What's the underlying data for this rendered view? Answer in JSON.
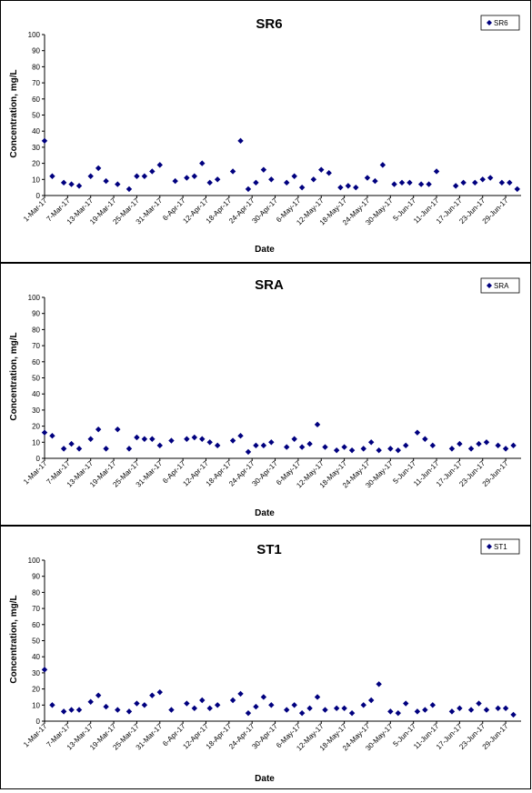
{
  "chart_data": [
    {
      "type": "scatter",
      "title": "SR6",
      "xlabel": "Date",
      "ylabel": "Concentration, mg/L",
      "ylim": [
        0,
        100
      ],
      "yticks": [
        0,
        10,
        20,
        30,
        40,
        50,
        60,
        70,
        80,
        90,
        100
      ],
      "xlim": [
        "2017-03-01",
        "2017-06-30"
      ],
      "xtick_labels": [
        "1-Mar-17",
        "7-Mar-17",
        "13-Mar-17",
        "19-Mar-17",
        "25-Mar-17",
        "31-Mar-17",
        "6-Apr-17",
        "12-Apr-17",
        "18-Apr-17",
        "24-Apr-17",
        "30-Apr-17",
        "6-May-17",
        "12-May-17",
        "18-May-17",
        "24-May-17",
        "30-May-17",
        "5-Jun-17",
        "11-Jun-17",
        "17-Jun-17",
        "23-Jun-17",
        "29-Jun-17"
      ],
      "legend_position": "top-right",
      "grid": false,
      "color": "#00007f",
      "series": [
        {
          "name": "SR6",
          "points": [
            [
              "2017-03-01",
              34
            ],
            [
              "2017-03-03",
              12
            ],
            [
              "2017-03-06",
              8
            ],
            [
              "2017-03-08",
              7
            ],
            [
              "2017-03-10",
              6
            ],
            [
              "2017-03-13",
              12
            ],
            [
              "2017-03-15",
              17
            ],
            [
              "2017-03-17",
              9
            ],
            [
              "2017-03-20",
              7
            ],
            [
              "2017-03-23",
              4
            ],
            [
              "2017-03-25",
              12
            ],
            [
              "2017-03-27",
              12
            ],
            [
              "2017-03-29",
              15
            ],
            [
              "2017-03-31",
              19
            ],
            [
              "2017-04-04",
              9
            ],
            [
              "2017-04-07",
              11
            ],
            [
              "2017-04-09",
              12
            ],
            [
              "2017-04-11",
              20
            ],
            [
              "2017-04-13",
              8
            ],
            [
              "2017-04-15",
              10
            ],
            [
              "2017-04-19",
              15
            ],
            [
              "2017-04-21",
              34
            ],
            [
              "2017-04-23",
              4
            ],
            [
              "2017-04-25",
              8
            ],
            [
              "2017-04-27",
              16
            ],
            [
              "2017-04-29",
              10
            ],
            [
              "2017-05-03",
              8
            ],
            [
              "2017-05-05",
              12
            ],
            [
              "2017-05-07",
              5
            ],
            [
              "2017-05-10",
              10
            ],
            [
              "2017-05-12",
              16
            ],
            [
              "2017-05-14",
              14
            ],
            [
              "2017-05-17",
              5
            ],
            [
              "2017-05-19",
              6
            ],
            [
              "2017-05-21",
              5
            ],
            [
              "2017-05-24",
              11
            ],
            [
              "2017-05-26",
              9
            ],
            [
              "2017-05-28",
              19
            ],
            [
              "2017-05-31",
              7
            ],
            [
              "2017-06-02",
              8
            ],
            [
              "2017-06-04",
              8
            ],
            [
              "2017-06-07",
              7
            ],
            [
              "2017-06-09",
              7
            ],
            [
              "2017-06-11",
              15
            ],
            [
              "2017-06-16",
              6
            ],
            [
              "2017-06-18",
              8
            ],
            [
              "2017-06-21",
              8
            ],
            [
              "2017-06-23",
              10
            ],
            [
              "2017-06-25",
              11
            ],
            [
              "2017-06-28",
              8
            ],
            [
              "2017-06-30",
              8
            ],
            [
              "2017-07-02",
              4
            ]
          ]
        }
      ]
    },
    {
      "type": "scatter",
      "title": "SRA",
      "xlabel": "Date",
      "ylabel": "Concentration, mg/L",
      "ylim": [
        0,
        100
      ],
      "yticks": [
        0,
        10,
        20,
        30,
        40,
        50,
        60,
        70,
        80,
        90,
        100
      ],
      "xlim": [
        "2017-03-01",
        "2017-06-30"
      ],
      "xtick_labels": [
        "1-Mar-17",
        "7-Mar-17",
        "13-Mar-17",
        "19-Mar-17",
        "25-Mar-17",
        "31-Mar-17",
        "6-Apr-17",
        "12-Apr-17",
        "18-Apr-17",
        "24-Apr-17",
        "30-Apr-17",
        "6-May-17",
        "12-May-17",
        "18-May-17",
        "24-May-17",
        "30-May-17",
        "5-Jun-17",
        "11-Jun-17",
        "17-Jun-17",
        "23-Jun-17",
        "29-Jun-17"
      ],
      "legend_position": "top-right",
      "grid": false,
      "color": "#00007f",
      "series": [
        {
          "name": "SRA",
          "points": [
            [
              "2017-03-01",
              16
            ],
            [
              "2017-03-03",
              14
            ],
            [
              "2017-03-06",
              6
            ],
            [
              "2017-03-08",
              9
            ],
            [
              "2017-03-10",
              6
            ],
            [
              "2017-03-13",
              12
            ],
            [
              "2017-03-15",
              18
            ],
            [
              "2017-03-17",
              6
            ],
            [
              "2017-03-20",
              18
            ],
            [
              "2017-03-23",
              6
            ],
            [
              "2017-03-25",
              13
            ],
            [
              "2017-03-27",
              12
            ],
            [
              "2017-03-29",
              12
            ],
            [
              "2017-03-31",
              8
            ],
            [
              "2017-04-03",
              11
            ],
            [
              "2017-04-07",
              12
            ],
            [
              "2017-04-09",
              13
            ],
            [
              "2017-04-11",
              12
            ],
            [
              "2017-04-13",
              10
            ],
            [
              "2017-04-15",
              8
            ],
            [
              "2017-04-19",
              11
            ],
            [
              "2017-04-21",
              14
            ],
            [
              "2017-04-23",
              4
            ],
            [
              "2017-04-25",
              8
            ],
            [
              "2017-04-27",
              8
            ],
            [
              "2017-04-29",
              10
            ],
            [
              "2017-05-03",
              7
            ],
            [
              "2017-05-05",
              12
            ],
            [
              "2017-05-07",
              7
            ],
            [
              "2017-05-09",
              9
            ],
            [
              "2017-05-11",
              21
            ],
            [
              "2017-05-13",
              7
            ],
            [
              "2017-05-16",
              5
            ],
            [
              "2017-05-18",
              7
            ],
            [
              "2017-05-20",
              5
            ],
            [
              "2017-05-23",
              6
            ],
            [
              "2017-05-25",
              10
            ],
            [
              "2017-05-27",
              5
            ],
            [
              "2017-05-30",
              6
            ],
            [
              "2017-06-01",
              5
            ],
            [
              "2017-06-03",
              8
            ],
            [
              "2017-06-06",
              16
            ],
            [
              "2017-06-08",
              12
            ],
            [
              "2017-06-10",
              8
            ],
            [
              "2017-06-15",
              6
            ],
            [
              "2017-06-17",
              9
            ],
            [
              "2017-06-20",
              6
            ],
            [
              "2017-06-22",
              9
            ],
            [
              "2017-06-24",
              10
            ],
            [
              "2017-06-27",
              8
            ],
            [
              "2017-06-29",
              6
            ],
            [
              "2017-07-01",
              8
            ]
          ]
        }
      ]
    },
    {
      "type": "scatter",
      "title": "ST1",
      "xlabel": "Date",
      "ylabel": "Concentration, mg/L",
      "ylim": [
        0,
        100
      ],
      "yticks": [
        0,
        10,
        20,
        30,
        40,
        50,
        60,
        70,
        80,
        90,
        100
      ],
      "xlim": [
        "2017-03-01",
        "2017-06-30"
      ],
      "xtick_labels": [
        "1-Mar-17",
        "7-Mar-17",
        "13-Mar-17",
        "19-Mar-17",
        "25-Mar-17",
        "31-Mar-17",
        "6-Apr-17",
        "12-Apr-17",
        "18-Apr-17",
        "24-Apr-17",
        "30-Apr-17",
        "6-May-17",
        "12-May-17",
        "18-May-17",
        "24-May-17",
        "30-May-17",
        "5-Jun-17",
        "11-Jun-17",
        "17-Jun-17",
        "23-Jun-17",
        "29-Jun-17"
      ],
      "legend_position": "top-right",
      "grid": false,
      "color": "#00007f",
      "series": [
        {
          "name": "ST1",
          "points": [
            [
              "2017-03-01",
              32
            ],
            [
              "2017-03-03",
              10
            ],
            [
              "2017-03-06",
              6
            ],
            [
              "2017-03-08",
              7
            ],
            [
              "2017-03-10",
              7
            ],
            [
              "2017-03-13",
              12
            ],
            [
              "2017-03-15",
              16
            ],
            [
              "2017-03-17",
              9
            ],
            [
              "2017-03-20",
              7
            ],
            [
              "2017-03-23",
              6
            ],
            [
              "2017-03-25",
              11
            ],
            [
              "2017-03-27",
              10
            ],
            [
              "2017-03-29",
              16
            ],
            [
              "2017-03-31",
              18
            ],
            [
              "2017-04-03",
              7
            ],
            [
              "2017-04-07",
              11
            ],
            [
              "2017-04-09",
              8
            ],
            [
              "2017-04-11",
              13
            ],
            [
              "2017-04-13",
              8
            ],
            [
              "2017-04-15",
              10
            ],
            [
              "2017-04-19",
              13
            ],
            [
              "2017-04-21",
              17
            ],
            [
              "2017-04-23",
              5
            ],
            [
              "2017-04-25",
              9
            ],
            [
              "2017-04-27",
              15
            ],
            [
              "2017-04-29",
              10
            ],
            [
              "2017-05-03",
              7
            ],
            [
              "2017-05-05",
              10
            ],
            [
              "2017-05-07",
              5
            ],
            [
              "2017-05-09",
              8
            ],
            [
              "2017-05-11",
              15
            ],
            [
              "2017-05-13",
              7
            ],
            [
              "2017-05-16",
              8
            ],
            [
              "2017-05-18",
              8
            ],
            [
              "2017-05-20",
              5
            ],
            [
              "2017-05-23",
              10
            ],
            [
              "2017-05-25",
              13
            ],
            [
              "2017-05-27",
              23
            ],
            [
              "2017-05-30",
              6
            ],
            [
              "2017-06-01",
              5
            ],
            [
              "2017-06-03",
              11
            ],
            [
              "2017-06-06",
              6
            ],
            [
              "2017-06-08",
              7
            ],
            [
              "2017-06-10",
              10
            ],
            [
              "2017-06-15",
              6
            ],
            [
              "2017-06-17",
              8
            ],
            [
              "2017-06-20",
              7
            ],
            [
              "2017-06-22",
              11
            ],
            [
              "2017-06-24",
              7
            ],
            [
              "2017-06-27",
              8
            ],
            [
              "2017-06-29",
              8
            ],
            [
              "2017-07-01",
              4
            ]
          ]
        }
      ]
    }
  ]
}
